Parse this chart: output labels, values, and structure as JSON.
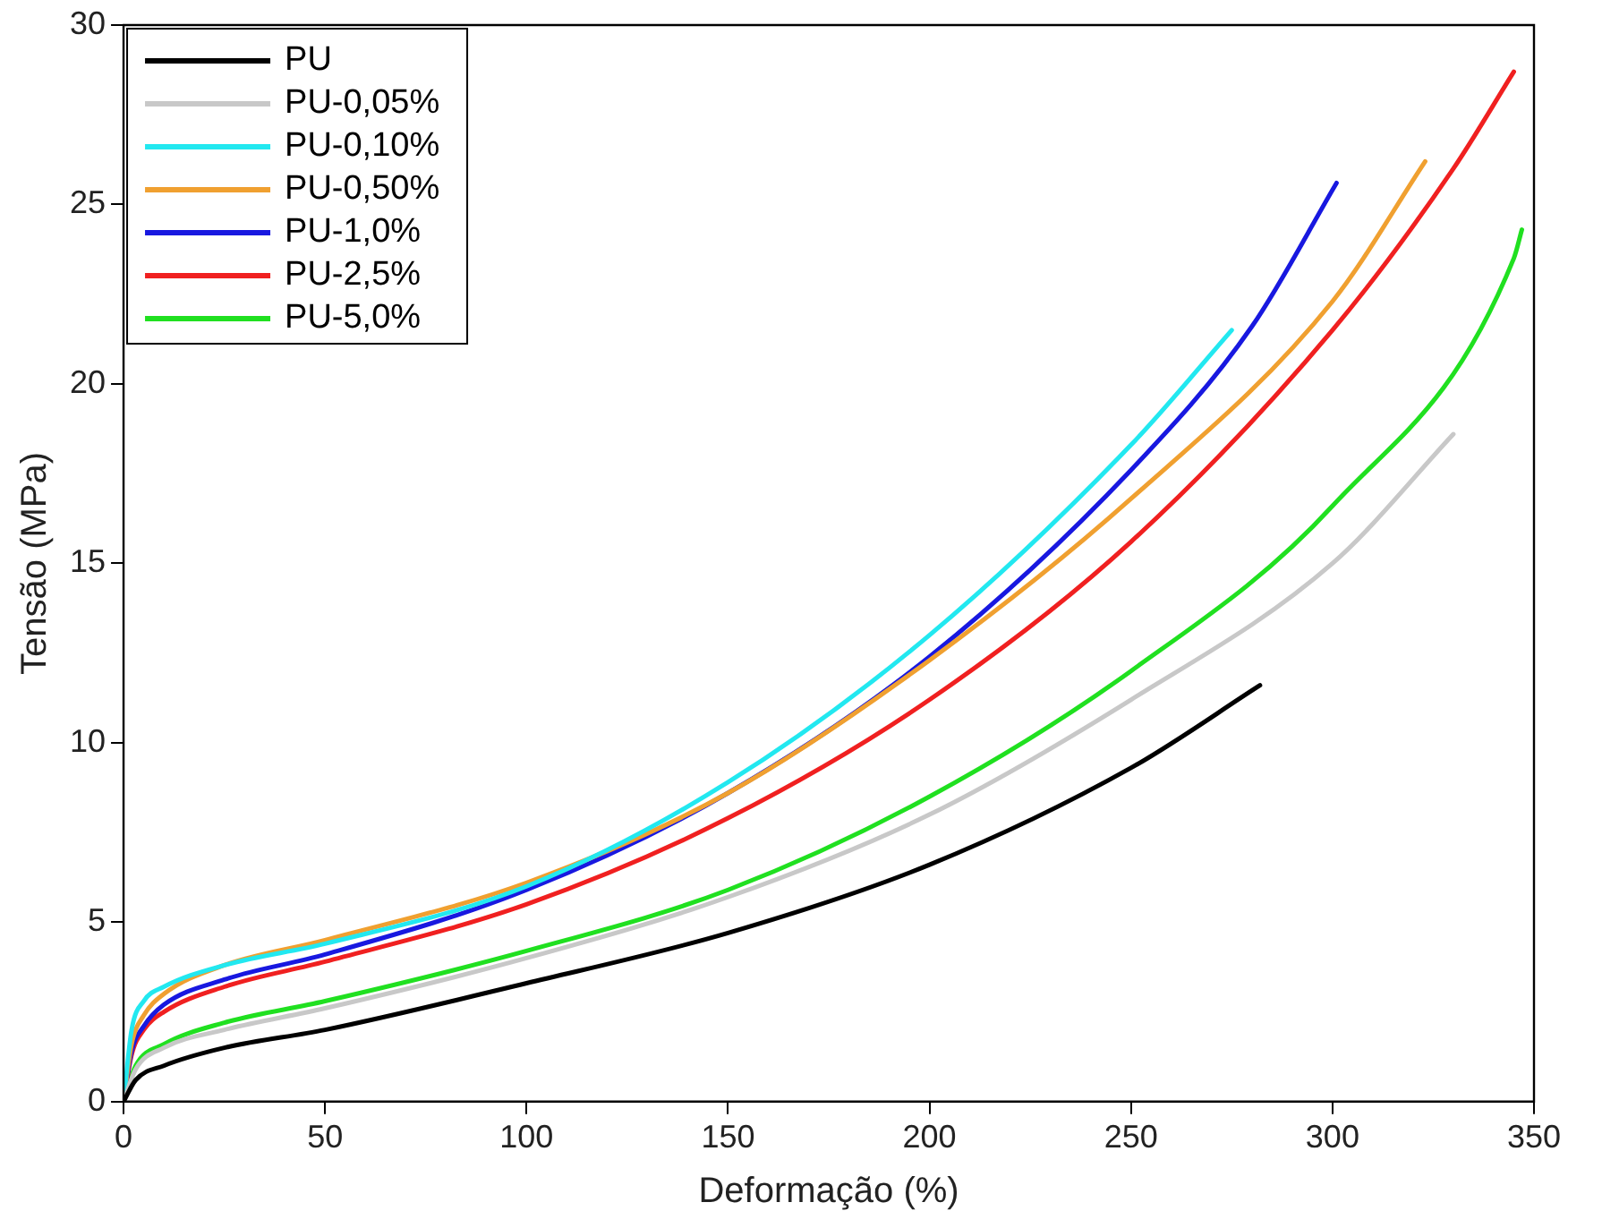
{
  "chart_data": {
    "type": "line",
    "xlabel": "Deformação (%)",
    "ylabel": "Tensão (MPa)",
    "xlim": [
      0,
      350
    ],
    "ylim": [
      0,
      30
    ],
    "xticks": [
      0,
      50,
      100,
      150,
      200,
      250,
      300,
      350
    ],
    "yticks": [
      0,
      5,
      10,
      15,
      20,
      25,
      30
    ],
    "grid": false,
    "legend": "top left",
    "marker": "none",
    "line_style": "solid",
    "series": [
      {
        "name": "PU",
        "color": "#000000",
        "x": [
          0,
          3,
          10,
          25,
          50,
          100,
          150,
          200,
          250,
          282
        ],
        "values": [
          0,
          0.6,
          1.0,
          1.5,
          2.0,
          3.3,
          4.7,
          6.6,
          9.3,
          11.6
        ]
      },
      {
        "name": "PU-0,05%",
        "color": "#c8c8c8",
        "x": [
          0,
          3,
          10,
          25,
          50,
          100,
          150,
          200,
          250,
          300,
          330
        ],
        "values": [
          0,
          0.9,
          1.5,
          2.0,
          2.6,
          4.0,
          5.7,
          8.0,
          11.2,
          15.0,
          18.6
        ]
      },
      {
        "name": "PU-0,10%",
        "color": "#22e8f0",
        "x": [
          0,
          2,
          5,
          10,
          25,
          50,
          100,
          150,
          200,
          250,
          275
        ],
        "values": [
          0,
          2.0,
          2.8,
          3.2,
          3.8,
          4.4,
          6.0,
          8.9,
          13.0,
          18.3,
          21.5
        ]
      },
      {
        "name": "PU-0,50%",
        "color": "#f0a030",
        "x": [
          0,
          2,
          5,
          10,
          25,
          50,
          100,
          150,
          200,
          250,
          300,
          323
        ],
        "values": [
          0,
          1.6,
          2.4,
          3.0,
          3.8,
          4.5,
          6.1,
          8.6,
          12.3,
          16.8,
          22.3,
          26.2
        ]
      },
      {
        "name": "PU-1,0%",
        "color": "#1818e0",
        "x": [
          0,
          2,
          5,
          10,
          25,
          50,
          100,
          150,
          200,
          250,
          280,
          301
        ],
        "values": [
          0,
          1.4,
          2.1,
          2.7,
          3.4,
          4.1,
          5.9,
          8.6,
          12.4,
          17.6,
          21.6,
          25.6
        ]
      },
      {
        "name": "PU-2,5%",
        "color": "#f02020",
        "x": [
          0,
          2,
          5,
          10,
          25,
          50,
          100,
          150,
          200,
          250,
          300,
          330,
          345
        ],
        "values": [
          0,
          1.3,
          2.0,
          2.5,
          3.2,
          3.9,
          5.5,
          7.9,
          11.2,
          15.6,
          21.5,
          26.0,
          28.7
        ]
      },
      {
        "name": "PU-5,0%",
        "color": "#20e020",
        "x": [
          0,
          3,
          10,
          25,
          50,
          100,
          150,
          200,
          250,
          300,
          345,
          347
        ],
        "values": [
          0,
          1.0,
          1.6,
          2.2,
          2.8,
          4.2,
          5.9,
          8.5,
          12.0,
          16.6,
          23.5,
          24.3
        ]
      }
    ]
  }
}
